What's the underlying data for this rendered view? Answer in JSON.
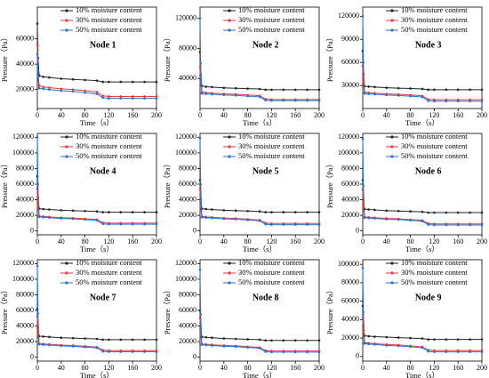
{
  "chart_data": [
    {
      "type": "line",
      "title": "Node 1",
      "x_label": "Time（s）",
      "y_label": "Pressure（Pa）",
      "x": [
        0,
        1,
        3,
        10,
        20,
        40,
        60,
        80,
        100,
        110,
        120,
        140,
        160,
        180,
        200
      ],
      "xlim": [
        0,
        200
      ],
      "xticks": [
        0,
        40,
        80,
        120,
        160,
        200
      ],
      "ylim": [
        5000,
        85000
      ],
      "yticks": [
        20000,
        40000,
        60000
      ],
      "series": [
        {
          "name": "10% moisture content",
          "color": "#222222",
          "values": [
            72000,
            45000,
            31000,
            30000,
            29500,
            28500,
            28000,
            27500,
            27000,
            26000,
            26000,
            26000,
            26000,
            26000,
            26000
          ]
        },
        {
          "name": "30% moisture content",
          "color": "#e8393b",
          "values": [
            55000,
            35000,
            23000,
            22000,
            21500,
            20500,
            20000,
            19000,
            18000,
            15000,
            14500,
            14500,
            14500,
            14500,
            14500
          ]
        },
        {
          "name": "50% moisture content",
          "color": "#2a6fd6",
          "values": [
            48000,
            30000,
            21000,
            20500,
            20000,
            19000,
            18500,
            17500,
            16500,
            13500,
            13000,
            13000,
            13000,
            13000,
            13000
          ]
        }
      ]
    },
    {
      "type": "line",
      "title": "Node 2",
      "x_label": "Time（s）",
      "y_label": "Pressure（Pa）",
      "x": [
        0,
        1,
        3,
        10,
        20,
        40,
        60,
        80,
        100,
        110,
        120,
        140,
        160,
        180,
        200
      ],
      "xlim": [
        0,
        200
      ],
      "xticks": [
        0,
        40,
        80,
        120,
        160,
        200
      ],
      "ylim": [
        0,
        135000
      ],
      "yticks": [
        40000,
        80000,
        120000
      ],
      "series": [
        {
          "name": "10% moisture content",
          "color": "#222222",
          "values": [
            75000,
            45000,
            30000,
            29000,
            28500,
            27500,
            27000,
            26500,
            26000,
            25000,
            25000,
            25000,
            25000,
            25000,
            25000
          ]
        },
        {
          "name": "30% moisture content",
          "color": "#e8393b",
          "values": [
            55000,
            35000,
            22000,
            21000,
            20500,
            19500,
            19000,
            18000,
            17000,
            12500,
            12000,
            12000,
            12000,
            12000,
            12000
          ]
        },
        {
          "name": "50% moisture content",
          "color": "#2a6fd6",
          "values": [
            120000,
            60000,
            20000,
            19500,
            19000,
            18000,
            17500,
            16500,
            15500,
            11000,
            10500,
            10500,
            10500,
            10500,
            10500
          ]
        }
      ]
    },
    {
      "type": "line",
      "title": "Node 3",
      "x_label": "Time（s）",
      "y_label": "Pressure（Pa）",
      "x": [
        0,
        1,
        3,
        10,
        20,
        40,
        60,
        80,
        100,
        110,
        120,
        140,
        160,
        180,
        200
      ],
      "xlim": [
        0,
        200
      ],
      "xticks": [
        0,
        40,
        80,
        120,
        160,
        200
      ],
      "ylim": [
        0,
        132000
      ],
      "yticks": [
        30000,
        60000,
        90000,
        120000
      ],
      "series": [
        {
          "name": "10% moisture content",
          "color": "#222222",
          "values": [
            75000,
            45000,
            29000,
            28500,
            28000,
            27000,
            26500,
            26000,
            25500,
            24500,
            24500,
            24500,
            24500,
            24500,
            24500
          ]
        },
        {
          "name": "30% moisture content",
          "color": "#e8393b",
          "values": [
            55000,
            33000,
            21000,
            20500,
            20000,
            19000,
            18500,
            17500,
            16500,
            12000,
            11500,
            11500,
            11500,
            11500,
            11500
          ]
        },
        {
          "name": "50% moisture content",
          "color": "#2a6fd6",
          "values": [
            120000,
            60000,
            19500,
            19000,
            18500,
            17500,
            17000,
            16000,
            15000,
            10000,
            9500,
            9500,
            9500,
            9500,
            9500
          ]
        }
      ]
    },
    {
      "type": "line",
      "title": "Node 4",
      "x_label": "Time（s）",
      "y_label": "Pressure（Pa）",
      "x": [
        0,
        1,
        3,
        10,
        20,
        40,
        60,
        80,
        100,
        110,
        120,
        140,
        160,
        180,
        200
      ],
      "xlim": [
        0,
        200
      ],
      "xticks": [
        0,
        40,
        80,
        120,
        160,
        200
      ],
      "ylim": [
        -5000,
        125000
      ],
      "yticks": [
        0,
        20000,
        40000,
        60000,
        80000,
        100000,
        120000
      ],
      "series": [
        {
          "name": "10% moisture content",
          "color": "#222222",
          "values": [
            70000,
            42000,
            28500,
            28000,
            27500,
            26500,
            26000,
            25500,
            25000,
            24000,
            24000,
            24000,
            24000,
            24000,
            24000
          ]
        },
        {
          "name": "30% moisture content",
          "color": "#e8393b",
          "values": [
            54000,
            32000,
            19000,
            18500,
            18000,
            17000,
            16500,
            15500,
            14500,
            10500,
            10000,
            10000,
            10000,
            10000,
            10000
          ]
        },
        {
          "name": "50% moisture content",
          "color": "#2a6fd6",
          "values": [
            120000,
            60000,
            18000,
            17500,
            17000,
            16000,
            15500,
            14500,
            13500,
            9000,
            8500,
            8500,
            8500,
            8500,
            8500
          ]
        }
      ]
    },
    {
      "type": "line",
      "title": "Node 5",
      "x_label": "Time（s）",
      "y_label": "Pressure（Pa）",
      "x": [
        0,
        1,
        3,
        10,
        20,
        40,
        60,
        80,
        100,
        110,
        120,
        140,
        160,
        180,
        200
      ],
      "xlim": [
        0,
        200
      ],
      "xticks": [
        0,
        40,
        80,
        120,
        160,
        200
      ],
      "ylim": [
        -5000,
        125000
      ],
      "yticks": [
        0,
        20000,
        40000,
        60000,
        80000,
        100000,
        120000
      ],
      "series": [
        {
          "name": "10% moisture content",
          "color": "#222222",
          "values": [
            65000,
            40000,
            28500,
            28000,
            27500,
            26500,
            26000,
            25500,
            25000,
            24000,
            24000,
            24000,
            24000,
            24000,
            24000
          ]
        },
        {
          "name": "30% moisture content",
          "color": "#e8393b",
          "values": [
            53000,
            31000,
            18500,
            18000,
            17500,
            16500,
            16000,
            15000,
            14000,
            10000,
            9500,
            9500,
            9500,
            9500,
            9500
          ]
        },
        {
          "name": "50% moisture content",
          "color": "#2a6fd6",
          "values": [
            119000,
            60000,
            17500,
            17000,
            16500,
            15500,
            15000,
            14000,
            13000,
            8500,
            8000,
            8000,
            8000,
            8000,
            8000
          ]
        }
      ]
    },
    {
      "type": "line",
      "title": "Node 6",
      "x_label": "Time（s）",
      "y_label": "Pressure（Pa）",
      "x": [
        0,
        1,
        3,
        10,
        20,
        40,
        60,
        80,
        100,
        110,
        120,
        140,
        160,
        180,
        200
      ],
      "xlim": [
        0,
        200
      ],
      "xticks": [
        0,
        40,
        80,
        120,
        160,
        200
      ],
      "ylim": [
        -5000,
        125000
      ],
      "yticks": [
        0,
        20000,
        40000,
        60000,
        80000,
        100000,
        120000
      ],
      "series": [
        {
          "name": "10% moisture content",
          "color": "#222222",
          "values": [
            65000,
            40000,
            28000,
            27500,
            27000,
            26000,
            25500,
            25000,
            24500,
            23500,
            23500,
            23500,
            23500,
            23500,
            23500
          ]
        },
        {
          "name": "30% moisture content",
          "color": "#e8393b",
          "values": [
            53000,
            31000,
            18000,
            17500,
            17000,
            16000,
            15500,
            14500,
            13500,
            9500,
            9000,
            9000,
            9000,
            9000,
            9000
          ]
        },
        {
          "name": "50% moisture content",
          "color": "#2a6fd6",
          "values": [
            118000,
            58000,
            17000,
            16500,
            16000,
            15000,
            14500,
            13500,
            12500,
            8000,
            7500,
            7500,
            7500,
            7500,
            7500
          ]
        }
      ]
    },
    {
      "type": "line",
      "title": "Node 7",
      "x_label": "Time（s）",
      "y_label": "Pressure（Pa）",
      "x": [
        0,
        1,
        3,
        10,
        20,
        40,
        60,
        80,
        100,
        110,
        120,
        140,
        160,
        180,
        200
      ],
      "xlim": [
        0,
        200
      ],
      "xticks": [
        0,
        40,
        80,
        120,
        160,
        200
      ],
      "ylim": [
        -5000,
        125000
      ],
      "yticks": [
        0,
        20000,
        40000,
        60000,
        80000,
        100000,
        120000
      ],
      "series": [
        {
          "name": "10% moisture content",
          "color": "#222222",
          "values": [
            62000,
            38000,
            27000,
            26500,
            26000,
            25000,
            24500,
            24000,
            23500,
            22500,
            22500,
            22500,
            22500,
            22500,
            22500
          ]
        },
        {
          "name": "30% moisture content",
          "color": "#e8393b",
          "values": [
            52000,
            30000,
            17500,
            17000,
            16500,
            15500,
            15000,
            14000,
            13000,
            9000,
            8500,
            8500,
            8500,
            8500,
            8500
          ]
        },
        {
          "name": "50% moisture content",
          "color": "#2a6fd6",
          "values": [
            117000,
            56000,
            16500,
            16000,
            15500,
            14500,
            14000,
            13000,
            12000,
            7500,
            7000,
            7000,
            7000,
            7000,
            7000
          ]
        }
      ]
    },
    {
      "type": "line",
      "title": "Node 8",
      "x_label": "Time（s）",
      "y_label": "Pressure（Pa）",
      "x": [
        0,
        1,
        3,
        10,
        20,
        40,
        60,
        80,
        100,
        110,
        120,
        140,
        160,
        180,
        200
      ],
      "xlim": [
        0,
        200
      ],
      "xticks": [
        0,
        40,
        80,
        120,
        160,
        200
      ],
      "ylim": [
        -5000,
        125000
      ],
      "yticks": [
        0,
        20000,
        40000,
        60000,
        80000,
        100000,
        120000
      ],
      "series": [
        {
          "name": "10% moisture content",
          "color": "#222222",
          "values": [
            60000,
            37000,
            26000,
            25500,
            25000,
            24000,
            23500,
            23000,
            22500,
            21500,
            21500,
            21500,
            21500,
            21500,
            21500
          ]
        },
        {
          "name": "30% moisture content",
          "color": "#e8393b",
          "values": [
            50000,
            29000,
            17000,
            16500,
            16000,
            15000,
            14500,
            13500,
            12500,
            8500,
            8000,
            8000,
            8000,
            8000,
            8000
          ]
        },
        {
          "name": "50% moisture content",
          "color": "#2a6fd6",
          "values": [
            112000,
            55000,
            16000,
            15500,
            15000,
            14000,
            13500,
            12500,
            11500,
            7000,
            6500,
            6500,
            6500,
            6500,
            6500
          ]
        }
      ]
    },
    {
      "type": "line",
      "title": "Node 9",
      "x_label": "Time（s）",
      "y_label": "Pressure（Pa）",
      "x": [
        0,
        1,
        3,
        10,
        20,
        40,
        60,
        80,
        100,
        110,
        120,
        140,
        160,
        180,
        200
      ],
      "xlim": [
        0,
        200
      ],
      "xticks": [
        0,
        40,
        80,
        120,
        160,
        200
      ],
      "ylim": [
        -5000,
        105000
      ],
      "yticks": [
        0,
        20000,
        40000,
        60000,
        80000,
        100000
      ],
      "series": [
        {
          "name": "10% moisture content",
          "color": "#222222",
          "values": [
            55000,
            33000,
            22500,
            22000,
            21500,
            21000,
            20500,
            20000,
            19500,
            18500,
            18500,
            18500,
            18500,
            18500,
            18500
          ]
        },
        {
          "name": "30% moisture content",
          "color": "#e8393b",
          "values": [
            42000,
            26000,
            15000,
            14500,
            14000,
            13000,
            12500,
            11500,
            10500,
            7000,
            6500,
            6500,
            6500,
            6500,
            6500
          ]
        },
        {
          "name": "50% moisture content",
          "color": "#2a6fd6",
          "values": [
            96000,
            48000,
            14000,
            13500,
            13000,
            12000,
            11500,
            10500,
            9500,
            5500,
            5000,
            5000,
            5000,
            5000,
            5000
          ]
        }
      ]
    }
  ]
}
